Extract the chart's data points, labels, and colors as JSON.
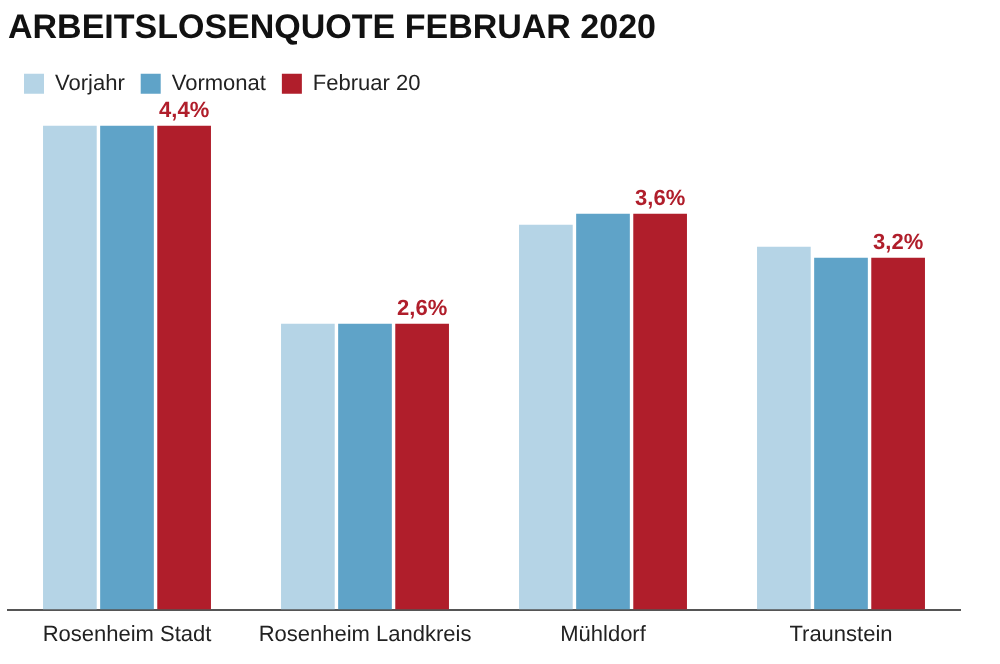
{
  "chart_data": {
    "type": "bar",
    "title": "ARBEITSLOSENQUOTE FEBRUAR 2020",
    "categories": [
      "Rosenheim Stadt",
      "Rosenheim Landkreis",
      "Mühldorf",
      "Traunstein"
    ],
    "series": [
      {
        "name": "Vorjahr",
        "color": "#b5d4e6",
        "values": [
          4.4,
          2.6,
          3.5,
          3.3
        ]
      },
      {
        "name": "Vormonat",
        "color": "#5fa3c8",
        "values": [
          4.4,
          2.6,
          3.6,
          3.2
        ]
      },
      {
        "name": "Februar 20",
        "color": "#b01e2b",
        "values": [
          4.4,
          2.6,
          3.6,
          3.2
        ],
        "value_labels": [
          "4,4%",
          "2,6%",
          "3,6%",
          "3,2%"
        ]
      }
    ],
    "legend": "top left",
    "grid": false
  }
}
